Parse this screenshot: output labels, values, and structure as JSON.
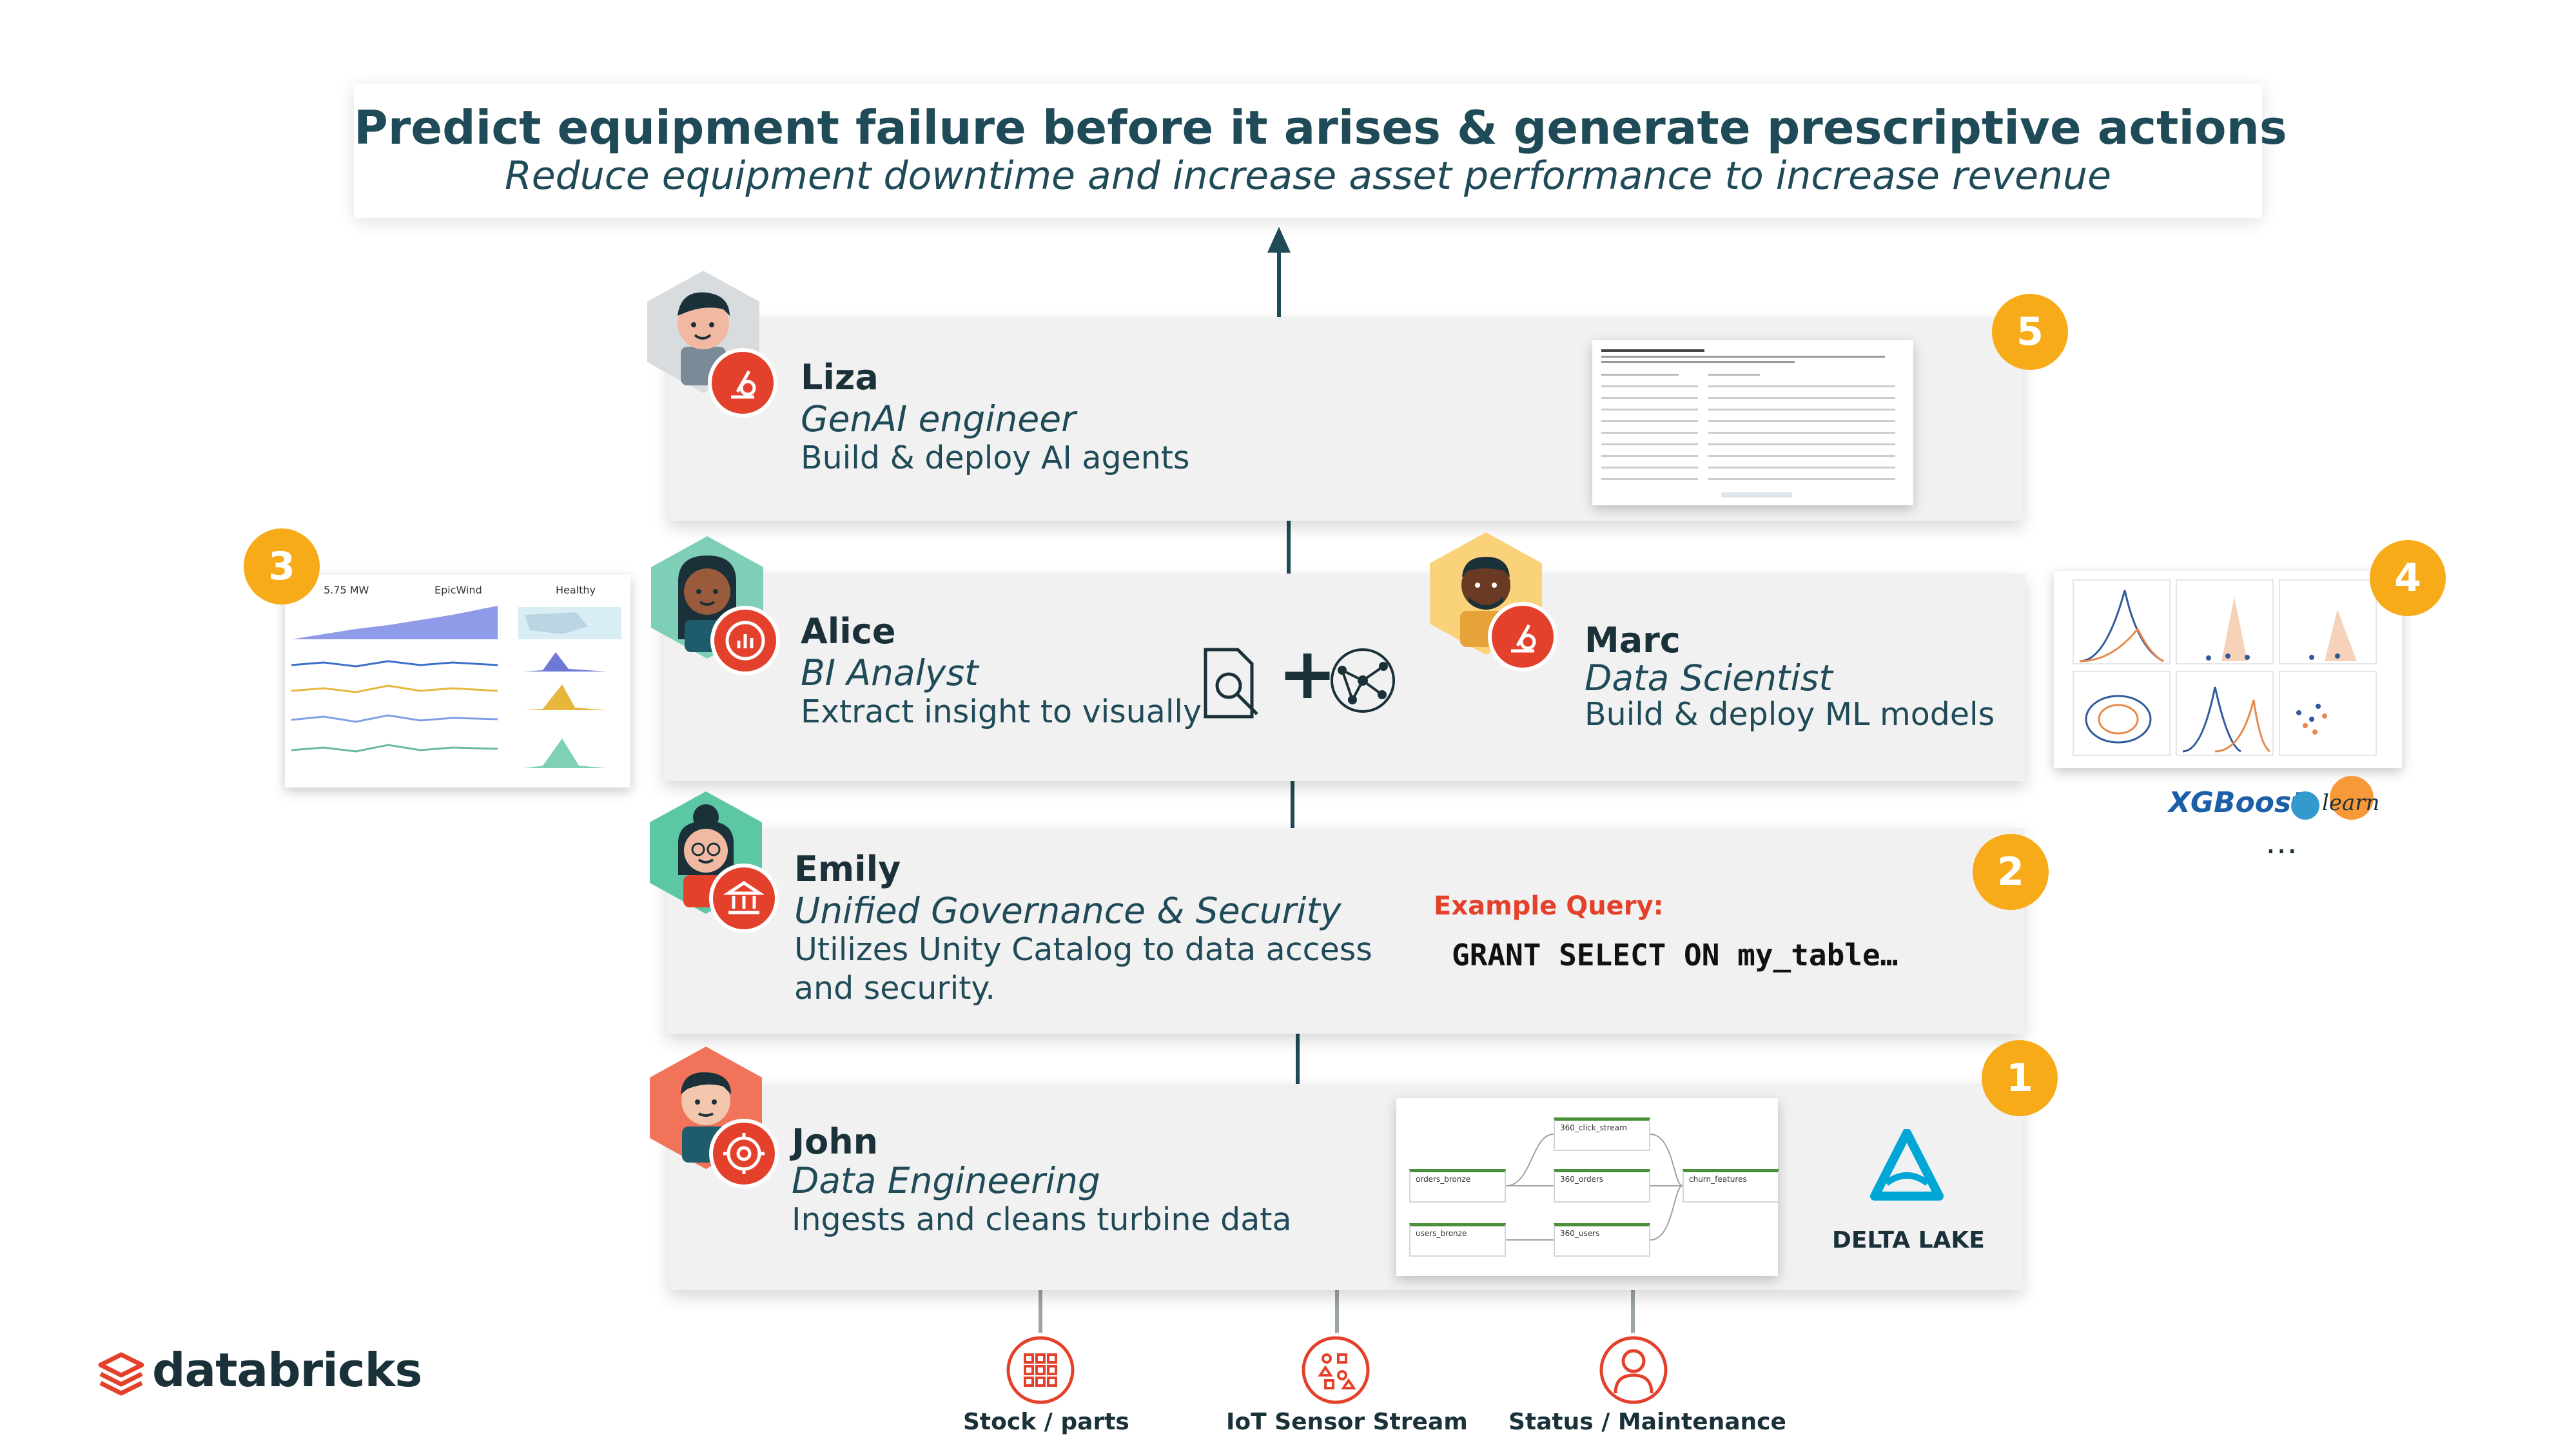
{
  "header": {
    "title": "Predict equipment failure before it arises  & generate prescriptive actions",
    "subtitle": "Reduce equipment downtime and increase asset performance to increase revenue"
  },
  "personas": {
    "liza": {
      "name": "Liza",
      "role": "GenAI engineer",
      "desc": "Build & deploy AI agents",
      "badge": "5"
    },
    "alice": {
      "name": "Alice",
      "role": "BI Analyst",
      "desc": "Extract insight to visually"
    },
    "marc": {
      "name": "Marc",
      "role": "Data Scientist",
      "desc": "Build & deploy ML models"
    },
    "emily": {
      "name": "Emily",
      "role": "Unified Governance & Security",
      "desc_line1": "Utilizes Unity Catalog to data access",
      "desc_line2": "and security.",
      "badge": "2"
    },
    "john": {
      "name": "John",
      "role": "Data Engineering",
      "desc": "Ingests and cleans turbine data",
      "badge": "1"
    }
  },
  "badges": {
    "dashboard": "3",
    "ml": "4"
  },
  "example_query": {
    "label": "Example Query:",
    "code": "GRANT SELECT ON my_table…"
  },
  "dashboard_thumb": {
    "kpi1": "5.75 MW",
    "kpi2": "EpicWind",
    "kpi3": "Healthy"
  },
  "ml_logos": {
    "xgboost": "XGBoost",
    "sklearn": "learn",
    "more": "…"
  },
  "delta_lake": {
    "label": "DELTA LAKE"
  },
  "pipeline": {
    "nodes": [
      "360_click_stream",
      "orders_bronze",
      "360_orders",
      "churn_features",
      "users_bronze",
      "360_users"
    ]
  },
  "sources": [
    {
      "label": "Stock / parts",
      "icon": "parts-grid-icon"
    },
    {
      "label": "IoT Sensor Stream",
      "icon": "sensor-stream-icon"
    },
    {
      "label": "Status / Maintenance",
      "icon": "person-status-icon"
    }
  ],
  "brand": {
    "logo_text": "databricks",
    "accent": "#e3412b",
    "badge_color": "#f7ab18",
    "text_color": "#1f4a57"
  }
}
